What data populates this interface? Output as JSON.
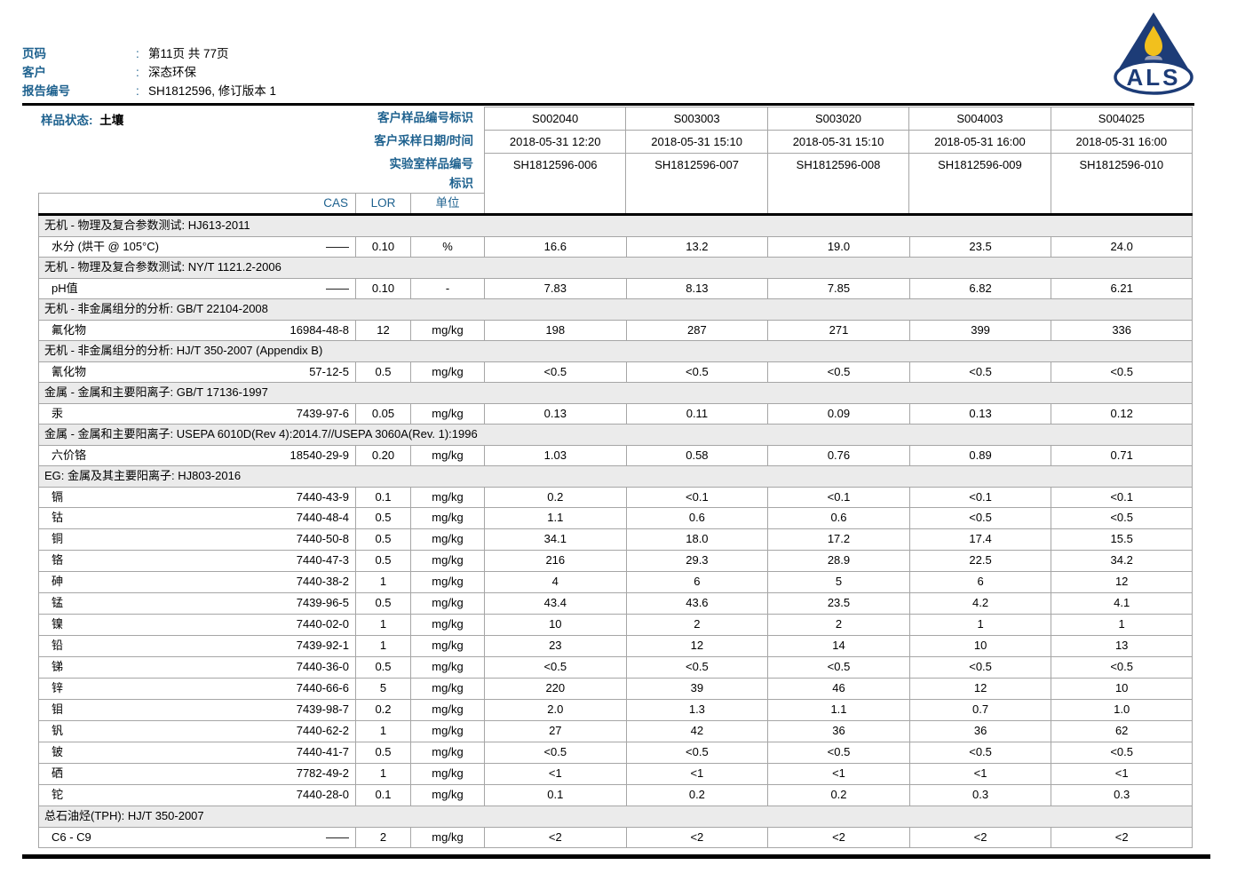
{
  "page_header": {
    "colon": ":",
    "rows": [
      {
        "label": "页码",
        "value": "第11页 共 77页"
      },
      {
        "label": "客户",
        "value": "深态环保"
      },
      {
        "label": "报告编号",
        "value": "SH1812596, 修订版本 1"
      }
    ]
  },
  "logo": {
    "text": "ALS",
    "navy": "#1d3c77",
    "yellow": "#f2c01d",
    "lavender": "#9aa0b8"
  },
  "table_header": {
    "sample_state_label": "样品状态:",
    "sample_state_value": "土壤",
    "row_labels": [
      "客户样品编号标识",
      "客户采样日期/时间",
      "实验室样品编号",
      "标识"
    ],
    "col_headers": {
      "cas": "CAS",
      "lor": "LOR",
      "unit": "单位"
    },
    "samples": [
      {
        "id": "S002040",
        "datetime": "2018-05-31 12:20",
        "lab_id": "SH1812596-006"
      },
      {
        "id": "S003003",
        "datetime": "2018-05-31 15:10",
        "lab_id": "SH1812596-007"
      },
      {
        "id": "S003020",
        "datetime": "2018-05-31 15:10",
        "lab_id": "SH1812596-008"
      },
      {
        "id": "S004003",
        "datetime": "2018-05-31 16:00",
        "lab_id": "SH1812596-009"
      },
      {
        "id": "S004025",
        "datetime": "2018-05-31 16:00",
        "lab_id": "SH1812596-010"
      }
    ]
  },
  "sections": [
    {
      "title": "无机 - 物理及复合参数测试: HJ613-2011",
      "rows": [
        {
          "name": "水分 (烘干 @ 105°C)",
          "cas": "——",
          "lor": "0.10",
          "unit": "%",
          "values": [
            "16.6",
            "13.2",
            "19.0",
            "23.5",
            "24.0"
          ]
        }
      ]
    },
    {
      "title": "无机 - 物理及复合参数测试: NY/T 1121.2-2006",
      "rows": [
        {
          "name": "pH值",
          "cas": "——",
          "lor": "0.10",
          "unit": "-",
          "values": [
            "7.83",
            "8.13",
            "7.85",
            "6.82",
            "6.21"
          ]
        }
      ]
    },
    {
      "title": "无机 - 非金属组分的分析: GB/T 22104-2008",
      "rows": [
        {
          "name": "氟化物",
          "cas": "16984-48-8",
          "lor": "12",
          "unit": "mg/kg",
          "values": [
            "198",
            "287",
            "271",
            "399",
            "336"
          ]
        }
      ]
    },
    {
      "title": "无机 - 非金属组分的分析: HJ/T 350-2007 (Appendix B)",
      "rows": [
        {
          "name": "氰化物",
          "cas": "57-12-5",
          "lor": "0.5",
          "unit": "mg/kg",
          "values": [
            "<0.5",
            "<0.5",
            "<0.5",
            "<0.5",
            "<0.5"
          ]
        }
      ]
    },
    {
      "title": "金属 - 金属和主要阳离子: GB/T 17136-1997",
      "rows": [
        {
          "name": "汞",
          "cas": "7439-97-6",
          "lor": "0.05",
          "unit": "mg/kg",
          "values": [
            "0.13",
            "0.11",
            "0.09",
            "0.13",
            "0.12"
          ]
        }
      ]
    },
    {
      "title": "金属 - 金属和主要阳离子: USEPA 6010D(Rev 4):2014.7//USEPA 3060A(Rev. 1):1996",
      "rows": [
        {
          "name": "六价铬",
          "cas": "18540-29-9",
          "lor": "0.20",
          "unit": "mg/kg",
          "values": [
            "1.03",
            "0.58",
            "0.76",
            "0.89",
            "0.71"
          ]
        }
      ]
    },
    {
      "title": "EG: 金属及其主要阳离子: HJ803-2016",
      "rows": [
        {
          "name": "镉",
          "cas": "7440-43-9",
          "lor": "0.1",
          "unit": "mg/kg",
          "values": [
            "0.2",
            "<0.1",
            "<0.1",
            "<0.1",
            "<0.1"
          ]
        },
        {
          "name": "钴",
          "cas": "7440-48-4",
          "lor": "0.5",
          "unit": "mg/kg",
          "values": [
            "1.1",
            "0.6",
            "0.6",
            "<0.5",
            "<0.5"
          ]
        },
        {
          "name": "铜",
          "cas": "7440-50-8",
          "lor": "0.5",
          "unit": "mg/kg",
          "values": [
            "34.1",
            "18.0",
            "17.2",
            "17.4",
            "15.5"
          ]
        },
        {
          "name": "铬",
          "cas": "7440-47-3",
          "lor": "0.5",
          "unit": "mg/kg",
          "values": [
            "216",
            "29.3",
            "28.9",
            "22.5",
            "34.2"
          ]
        },
        {
          "name": "砷",
          "cas": "7440-38-2",
          "lor": "1",
          "unit": "mg/kg",
          "values": [
            "4",
            "6",
            "5",
            "6",
            "12"
          ]
        },
        {
          "name": "锰",
          "cas": "7439-96-5",
          "lor": "0.5",
          "unit": "mg/kg",
          "values": [
            "43.4",
            "43.6",
            "23.5",
            "4.2",
            "4.1"
          ]
        },
        {
          "name": "镍",
          "cas": "7440-02-0",
          "lor": "1",
          "unit": "mg/kg",
          "values": [
            "10",
            "2",
            "2",
            "1",
            "1"
          ]
        },
        {
          "name": "铅",
          "cas": "7439-92-1",
          "lor": "1",
          "unit": "mg/kg",
          "values": [
            "23",
            "12",
            "14",
            "10",
            "13"
          ]
        },
        {
          "name": "锑",
          "cas": "7440-36-0",
          "lor": "0.5",
          "unit": "mg/kg",
          "values": [
            "<0.5",
            "<0.5",
            "<0.5",
            "<0.5",
            "<0.5"
          ]
        },
        {
          "name": "锌",
          "cas": "7440-66-6",
          "lor": "5",
          "unit": "mg/kg",
          "values": [
            "220",
            "39",
            "46",
            "12",
            "10"
          ]
        },
        {
          "name": "钼",
          "cas": "7439-98-7",
          "lor": "0.2",
          "unit": "mg/kg",
          "values": [
            "2.0",
            "1.3",
            "1.1",
            "0.7",
            "1.0"
          ]
        },
        {
          "name": "钒",
          "cas": "7440-62-2",
          "lor": "1",
          "unit": "mg/kg",
          "values": [
            "27",
            "42",
            "36",
            "36",
            "62"
          ]
        },
        {
          "name": "铍",
          "cas": "7440-41-7",
          "lor": "0.5",
          "unit": "mg/kg",
          "values": [
            "<0.5",
            "<0.5",
            "<0.5",
            "<0.5",
            "<0.5"
          ]
        },
        {
          "name": "硒",
          "cas": "7782-49-2",
          "lor": "1",
          "unit": "mg/kg",
          "values": [
            "<1",
            "<1",
            "<1",
            "<1",
            "<1"
          ]
        },
        {
          "name": "铊",
          "cas": "7440-28-0",
          "lor": "0.1",
          "unit": "mg/kg",
          "values": [
            "0.1",
            "0.2",
            "0.2",
            "0.3",
            "0.3"
          ]
        }
      ]
    },
    {
      "title": "总石油烃(TPH): HJ/T 350-2007",
      "rows": [
        {
          "name": "C6 - C9",
          "cas": "——",
          "lor": "2",
          "unit": "mg/kg",
          "values": [
            "<2",
            "<2",
            "<2",
            "<2",
            "<2"
          ]
        }
      ]
    }
  ],
  "colors": {
    "accent_blue": "#1f628f",
    "border_gray": "#a6a6a6",
    "section_bg": "#ebebeb",
    "rule_black": "#000000"
  }
}
